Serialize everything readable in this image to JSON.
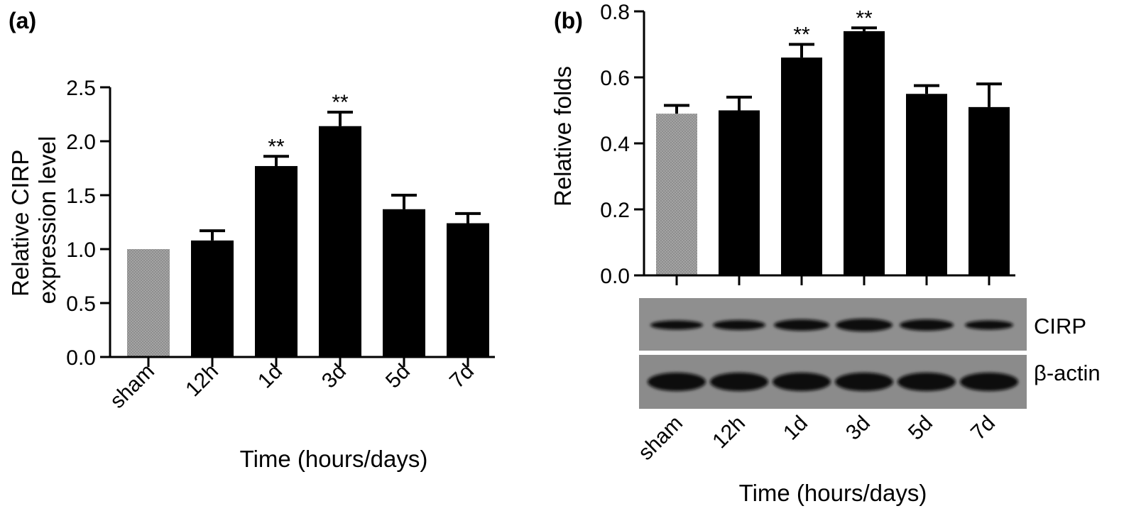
{
  "chart_data": [
    {
      "panel_label": "(a)",
      "type": "bar",
      "categories": [
        "sham",
        "12h",
        "1d",
        "3d",
        "5d",
        "7d"
      ],
      "values": [
        1.0,
        1.08,
        1.77,
        2.14,
        1.37,
        1.24
      ],
      "errors": [
        0.0,
        0.09,
        0.09,
        0.13,
        0.13,
        0.09
      ],
      "significance": [
        "",
        "",
        "**",
        "**",
        "",
        ""
      ],
      "bar_colors": [
        "#a0a0a0",
        "#000000",
        "#000000",
        "#000000",
        "#000000",
        "#000000"
      ],
      "y_ticks": [
        "0.0",
        "0.5",
        "1.0",
        "1.5",
        "2.0",
        "2.5"
      ],
      "ylim": [
        0,
        2.5
      ],
      "ylabel_lines": [
        "Relative CIRP",
        "expression level"
      ],
      "xlabel": "Time (hours/days)",
      "grid": false
    },
    {
      "panel_label": "(b)",
      "type": "bar",
      "categories": [
        "sham",
        "12h",
        "1d",
        "3d",
        "5d",
        "7d"
      ],
      "values": [
        0.49,
        0.5,
        0.66,
        0.74,
        0.55,
        0.51
      ],
      "errors": [
        0.025,
        0.04,
        0.04,
        0.01,
        0.025,
        0.07
      ],
      "significance": [
        "",
        "",
        "**",
        "**",
        "",
        ""
      ],
      "bar_colors": [
        "#a0a0a0",
        "#000000",
        "#000000",
        "#000000",
        "#000000",
        "#000000"
      ],
      "y_ticks": [
        "0.0",
        "0.2",
        "0.4",
        "0.6",
        "0.8"
      ],
      "ylim": [
        0,
        0.8
      ],
      "ylabel": "Relative folds",
      "xlabel": "Time (hours/days)",
      "grid": false,
      "blot_labels": [
        "CIRP",
        "β-actin"
      ]
    }
  ]
}
